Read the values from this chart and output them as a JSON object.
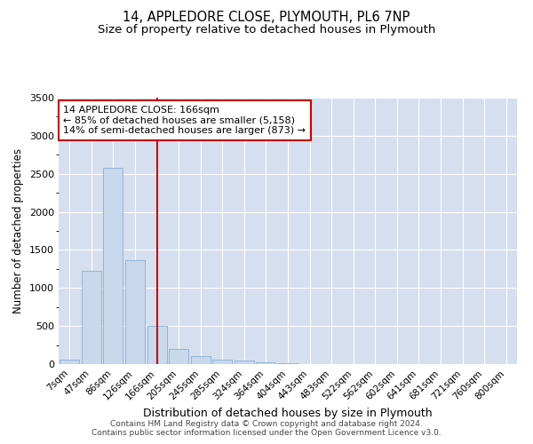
{
  "title1": "14, APPLEDORE CLOSE, PLYMOUTH, PL6 7NP",
  "title2": "Size of property relative to detached houses in Plymouth",
  "xlabel": "Distribution of detached houses by size in Plymouth",
  "ylabel": "Number of detached properties",
  "categories": [
    "7sqm",
    "47sqm",
    "86sqm",
    "126sqm",
    "166sqm",
    "205sqm",
    "245sqm",
    "285sqm",
    "324sqm",
    "364sqm",
    "404sqm",
    "443sqm",
    "483sqm",
    "522sqm",
    "562sqm",
    "602sqm",
    "641sqm",
    "681sqm",
    "721sqm",
    "760sqm",
    "800sqm"
  ],
  "values": [
    60,
    1220,
    2580,
    1360,
    500,
    200,
    110,
    55,
    50,
    20,
    8,
    3,
    1,
    1,
    0,
    0,
    0,
    0,
    0,
    0,
    0
  ],
  "bar_color": "#c8d9ee",
  "bar_edge_color": "#8aadd4",
  "highlight_index": 4,
  "highlight_color": "#cc0000",
  "vline_color": "#cc0000",
  "ylim": [
    0,
    3500
  ],
  "yticks": [
    0,
    500,
    1000,
    1500,
    2000,
    2500,
    3000,
    3500
  ],
  "annotation_title": "14 APPLEDORE CLOSE: 166sqm",
  "annotation_line1": "← 85% of detached houses are smaller (5,158)",
  "annotation_line2": "14% of semi-detached houses are larger (873) →",
  "annotation_box_color": "#cc0000",
  "footer1": "Contains HM Land Registry data © Crown copyright and database right 2024.",
  "footer2": "Contains public sector information licensed under the Open Government Licence v3.0.",
  "bg_color": "#ffffff",
  "grid_color": "#d5dff0",
  "title_fontsize": 10.5,
  "subtitle_fontsize": 9.5,
  "footer_fontsize": 6.5,
  "bar_width": 0.9
}
